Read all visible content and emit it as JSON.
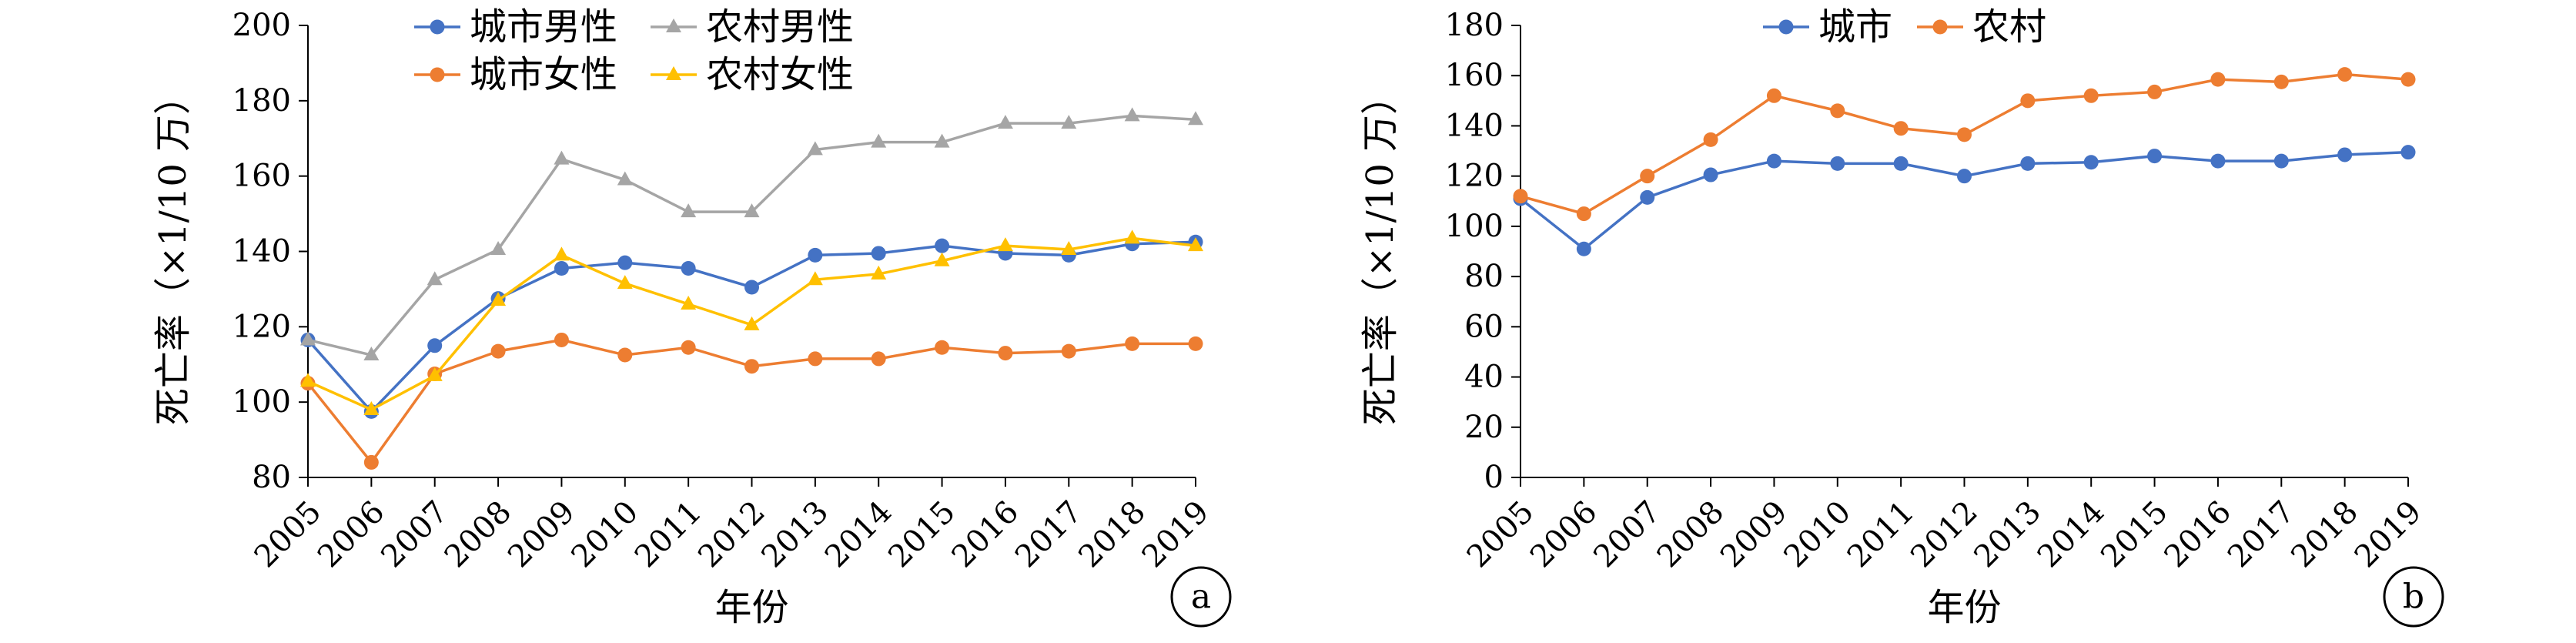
{
  "chart_data": [
    {
      "type": "line",
      "badge": "a",
      "xlabel": "年份",
      "ylabel": "死亡率（×1/10 万）",
      "ylim": [
        80,
        200
      ],
      "yticks": [
        80,
        100,
        120,
        140,
        160,
        180,
        200
      ],
      "categories": [
        "2005",
        "2006",
        "2007",
        "2008",
        "2009",
        "2010",
        "2011",
        "2012",
        "2013",
        "2014",
        "2015",
        "2016",
        "2017",
        "2018",
        "2019"
      ],
      "legend_position": "top",
      "series": [
        {
          "name": "城市男性",
          "color": "#4472C4",
          "marker": "circle",
          "values": [
            116.5,
            97.5,
            115,
            127.5,
            135.5,
            137,
            135.5,
            130.5,
            139,
            139.5,
            141.5,
            139.5,
            139,
            142,
            142.5
          ]
        },
        {
          "name": "农村男性",
          "color": "#A5A5A5",
          "marker": "triangle",
          "values": [
            116.5,
            112.5,
            132.5,
            140.5,
            164.5,
            159,
            150.5,
            150.5,
            167,
            169,
            169,
            174,
            174,
            176,
            175
          ]
        },
        {
          "name": "城市女性",
          "color": "#ED7D31",
          "marker": "circle",
          "values": [
            105,
            84,
            107.5,
            113.5,
            116.5,
            112.5,
            114.5,
            109.5,
            111.5,
            111.5,
            114.5,
            113,
            113.5,
            115.5,
            115.5
          ]
        },
        {
          "name": "农村女性",
          "color": "#FFC000",
          "marker": "triangle",
          "values": [
            105.5,
            98,
            107,
            127,
            139,
            131.5,
            126,
            120.5,
            132.5,
            134,
            137.5,
            141.5,
            140.5,
            143.5,
            141.5
          ]
        }
      ]
    },
    {
      "type": "line",
      "badge": "b",
      "xlabel": "年份",
      "ylabel": "死亡率（×1/10 万）",
      "ylim": [
        0,
        180
      ],
      "yticks": [
        0,
        20,
        40,
        60,
        80,
        100,
        120,
        140,
        160,
        180
      ],
      "categories": [
        "2005",
        "2006",
        "2007",
        "2008",
        "2009",
        "2010",
        "2011",
        "2012",
        "2013",
        "2014",
        "2015",
        "2016",
        "2017",
        "2018",
        "2019"
      ],
      "legend_position": "top",
      "series": [
        {
          "name": "城市",
          "color": "#4472C4",
          "marker": "circle",
          "values": [
            111,
            91,
            111.5,
            120.5,
            126,
            125,
            125,
            120,
            125,
            125.5,
            128,
            126,
            126,
            128.5,
            129.5
          ]
        },
        {
          "name": "农村",
          "color": "#ED7D31",
          "marker": "circle",
          "values": [
            112,
            105,
            120,
            134.5,
            152,
            146,
            139,
            136.5,
            150,
            152,
            153.5,
            158.5,
            157.5,
            160.5,
            158.5
          ]
        }
      ]
    }
  ]
}
